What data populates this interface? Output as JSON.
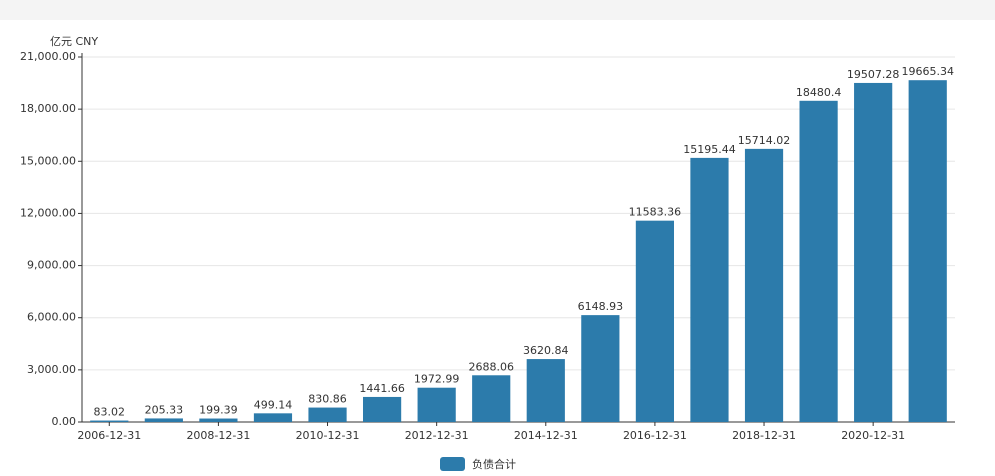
{
  "chart_data": {
    "type": "bar",
    "y_label": "亿元  CNY",
    "categories": [
      "2006-12-31",
      null,
      "2008-12-31",
      null,
      "2010-12-31",
      null,
      "2012-12-31",
      null,
      "2014-12-31",
      null,
      "2016-12-31",
      null,
      "2018-12-31",
      null,
      "2020-12-31",
      null
    ],
    "series": [
      {
        "name": "负债合计",
        "color": "#2c7bab",
        "values": [
          83.02,
          205.33,
          199.39,
          499.14,
          830.86,
          1441.66,
          1972.99,
          2688.06,
          3620.84,
          6148.93,
          11583.36,
          15195.44,
          15714.02,
          18480.4,
          19507.28,
          19665.34
        ]
      }
    ],
    "ylim": [
      0,
      21000
    ],
    "yticks": [
      {
        "value": 0,
        "label": "0.00"
      },
      {
        "value": 3000,
        "label": "3,000.00"
      },
      {
        "value": 6000,
        "label": "6,000.00"
      },
      {
        "value": 9000,
        "label": "9,000.00"
      },
      {
        "value": 12000,
        "label": "12,000.00"
      },
      {
        "value": 15000,
        "label": "15,000.00"
      },
      {
        "value": 18000,
        "label": "18,000.00"
      },
      {
        "value": 21000,
        "label": "21,000.00"
      }
    ],
    "grid": true
  }
}
